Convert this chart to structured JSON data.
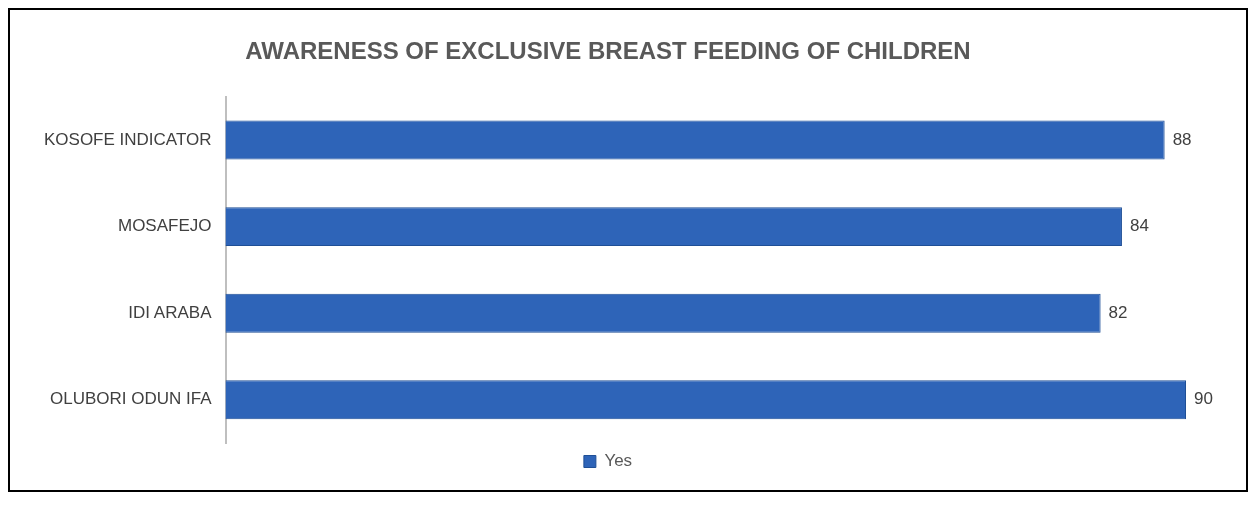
{
  "chart_data": {
    "type": "bar",
    "title": "AWARENESS OF EXCLUSIVE BREAST FEEDING OF CHILDREN",
    "orientation": "horizontal",
    "categories": [
      "KOSOFE INDICATOR",
      "MOSAFEJO",
      "IDI ARABA",
      "OLUBORI ODUN IFA"
    ],
    "series": [
      {
        "name": "Yes",
        "color": "#2e64b8",
        "values": [
          88,
          84,
          82,
          90
        ]
      }
    ],
    "tick_labels": "y",
    "grid": false,
    "legend": "bottom",
    "data_labels": true
  }
}
